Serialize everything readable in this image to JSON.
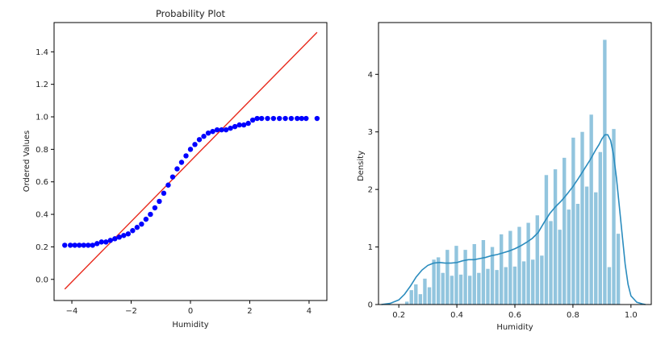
{
  "chart_data": [
    {
      "type": "scatter",
      "title": "Probability Plot",
      "xlabel": "Humidity",
      "ylabel": "Ordered Values",
      "xlim": [
        -4.6,
        4.6
      ],
      "ylim": [
        -0.13,
        1.58
      ],
      "xticks": [
        -4,
        -2,
        0,
        2,
        4
      ],
      "xtick_labels": [
        "−4",
        "−2",
        "0",
        "2",
        "4"
      ],
      "yticks": [
        0.0,
        0.2,
        0.4,
        0.6,
        0.8,
        1.0,
        1.2,
        1.4
      ],
      "ytick_labels": [
        "0.0",
        "0.2",
        "0.4",
        "0.6",
        "0.8",
        "1.0",
        "1.2",
        "1.4"
      ],
      "grid": false,
      "colors": {
        "points": "#0000ff",
        "fit_line": "#e8291c"
      },
      "fit_line": {
        "x": [
          -4.24,
          4.27
        ],
        "y": [
          -0.06,
          1.52
        ]
      },
      "series": [
        {
          "x": [
            -4.24,
            -4.05,
            -3.9,
            -3.75,
            -3.6,
            -3.45,
            -3.3,
            -3.15,
            -3.0,
            -2.85,
            -2.7,
            -2.55,
            -2.4,
            -2.25,
            -2.1,
            -1.95,
            -1.8,
            -1.65,
            -1.5,
            -1.35,
            -1.2,
            -1.05,
            -0.9,
            -0.75,
            -0.6,
            -0.45,
            -0.3,
            -0.15,
            0.0,
            0.15,
            0.3,
            0.45,
            0.6,
            0.75,
            0.9,
            1.05,
            1.2,
            1.35,
            1.5,
            1.65,
            1.8,
            1.95,
            2.1,
            2.25,
            2.4,
            2.6,
            2.8,
            3.0,
            3.2,
            3.4,
            3.6,
            3.75,
            3.9,
            4.27
          ],
          "y": [
            0.21,
            0.21,
            0.21,
            0.21,
            0.21,
            0.21,
            0.21,
            0.22,
            0.23,
            0.23,
            0.24,
            0.25,
            0.26,
            0.27,
            0.28,
            0.3,
            0.32,
            0.34,
            0.37,
            0.4,
            0.44,
            0.48,
            0.53,
            0.58,
            0.63,
            0.68,
            0.72,
            0.76,
            0.8,
            0.83,
            0.86,
            0.88,
            0.9,
            0.91,
            0.92,
            0.92,
            0.92,
            0.93,
            0.94,
            0.95,
            0.95,
            0.96,
            0.98,
            0.99,
            0.99,
            0.99,
            0.99,
            0.99,
            0.99,
            0.99,
            0.99,
            0.99,
            0.99,
            0.99
          ]
        }
      ]
    },
    {
      "type": "bar",
      "title": "",
      "xlabel": "Humidity",
      "ylabel": "Density",
      "xlim": [
        0.13,
        1.07
      ],
      "ylim": [
        0,
        4.9
      ],
      "xticks": [
        0.2,
        0.4,
        0.6,
        0.8,
        1.0
      ],
      "xtick_labels": [
        "0.2",
        "0.4",
        "0.6",
        "0.8",
        "1.0"
      ],
      "yticks": [
        0,
        1,
        2,
        3,
        4
      ],
      "ytick_labels": [
        "0",
        "1",
        "2",
        "3",
        "4"
      ],
      "grid": false,
      "colors": {
        "bars": "#92c5de",
        "kde": "#2b8cbe"
      },
      "bin_width": 0.0155,
      "bin_left": [
        0.22,
        0.2355,
        0.251,
        0.2665,
        0.282,
        0.2975,
        0.313,
        0.3285,
        0.344,
        0.3595,
        0.375,
        0.3905,
        0.406,
        0.4215,
        0.437,
        0.4525,
        0.468,
        0.4835,
        0.499,
        0.5145,
        0.53,
        0.5455,
        0.561,
        0.5765,
        0.592,
        0.6075,
        0.623,
        0.6385,
        0.654,
        0.6695,
        0.685,
        0.7005,
        0.716,
        0.7315,
        0.747,
        0.7625,
        0.778,
        0.7935,
        0.809,
        0.8245,
        0.84,
        0.8555,
        0.871,
        0.8865,
        0.902,
        0.9175,
        0.933,
        0.9485,
        0.964,
        0.9795
      ],
      "values": [
        0.05,
        0.25,
        0.35,
        0.18,
        0.45,
        0.3,
        0.78,
        0.82,
        0.55,
        0.95,
        0.5,
        1.02,
        0.52,
        0.95,
        0.5,
        1.05,
        0.55,
        1.12,
        0.62,
        1.0,
        0.6,
        1.22,
        0.65,
        1.28,
        0.66,
        1.35,
        0.75,
        1.42,
        0.78,
        1.55,
        0.85,
        2.25,
        1.45,
        2.35,
        1.3,
        2.55,
        1.65,
        2.9,
        1.75,
        3.0,
        2.05,
        3.3,
        1.95,
        2.65,
        4.6,
        0.65,
        3.05,
        1.23,
        0.0,
        0.0
      ],
      "kde": {
        "x": [
          0.14,
          0.17,
          0.2,
          0.22,
          0.24,
          0.26,
          0.28,
          0.3,
          0.32,
          0.34,
          0.36,
          0.38,
          0.4,
          0.42,
          0.44,
          0.46,
          0.48,
          0.5,
          0.52,
          0.54,
          0.56,
          0.58,
          0.6,
          0.62,
          0.64,
          0.66,
          0.68,
          0.7,
          0.72,
          0.74,
          0.76,
          0.78,
          0.8,
          0.82,
          0.84,
          0.86,
          0.88,
          0.89,
          0.9,
          0.91,
          0.92,
          0.93,
          0.94,
          0.95,
          0.96,
          0.97,
          0.98,
          0.99,
          1.0,
          1.02,
          1.04,
          1.05
        ],
        "y": [
          0.0,
          0.02,
          0.08,
          0.18,
          0.32,
          0.48,
          0.6,
          0.68,
          0.72,
          0.73,
          0.72,
          0.72,
          0.73,
          0.76,
          0.78,
          0.78,
          0.8,
          0.82,
          0.85,
          0.87,
          0.9,
          0.93,
          0.97,
          1.02,
          1.08,
          1.15,
          1.25,
          1.42,
          1.58,
          1.7,
          1.8,
          1.92,
          2.05,
          2.2,
          2.36,
          2.52,
          2.7,
          2.78,
          2.88,
          2.95,
          2.95,
          2.85,
          2.6,
          2.2,
          1.7,
          1.2,
          0.7,
          0.35,
          0.15,
          0.04,
          0.01,
          0.0
        ]
      }
    }
  ]
}
